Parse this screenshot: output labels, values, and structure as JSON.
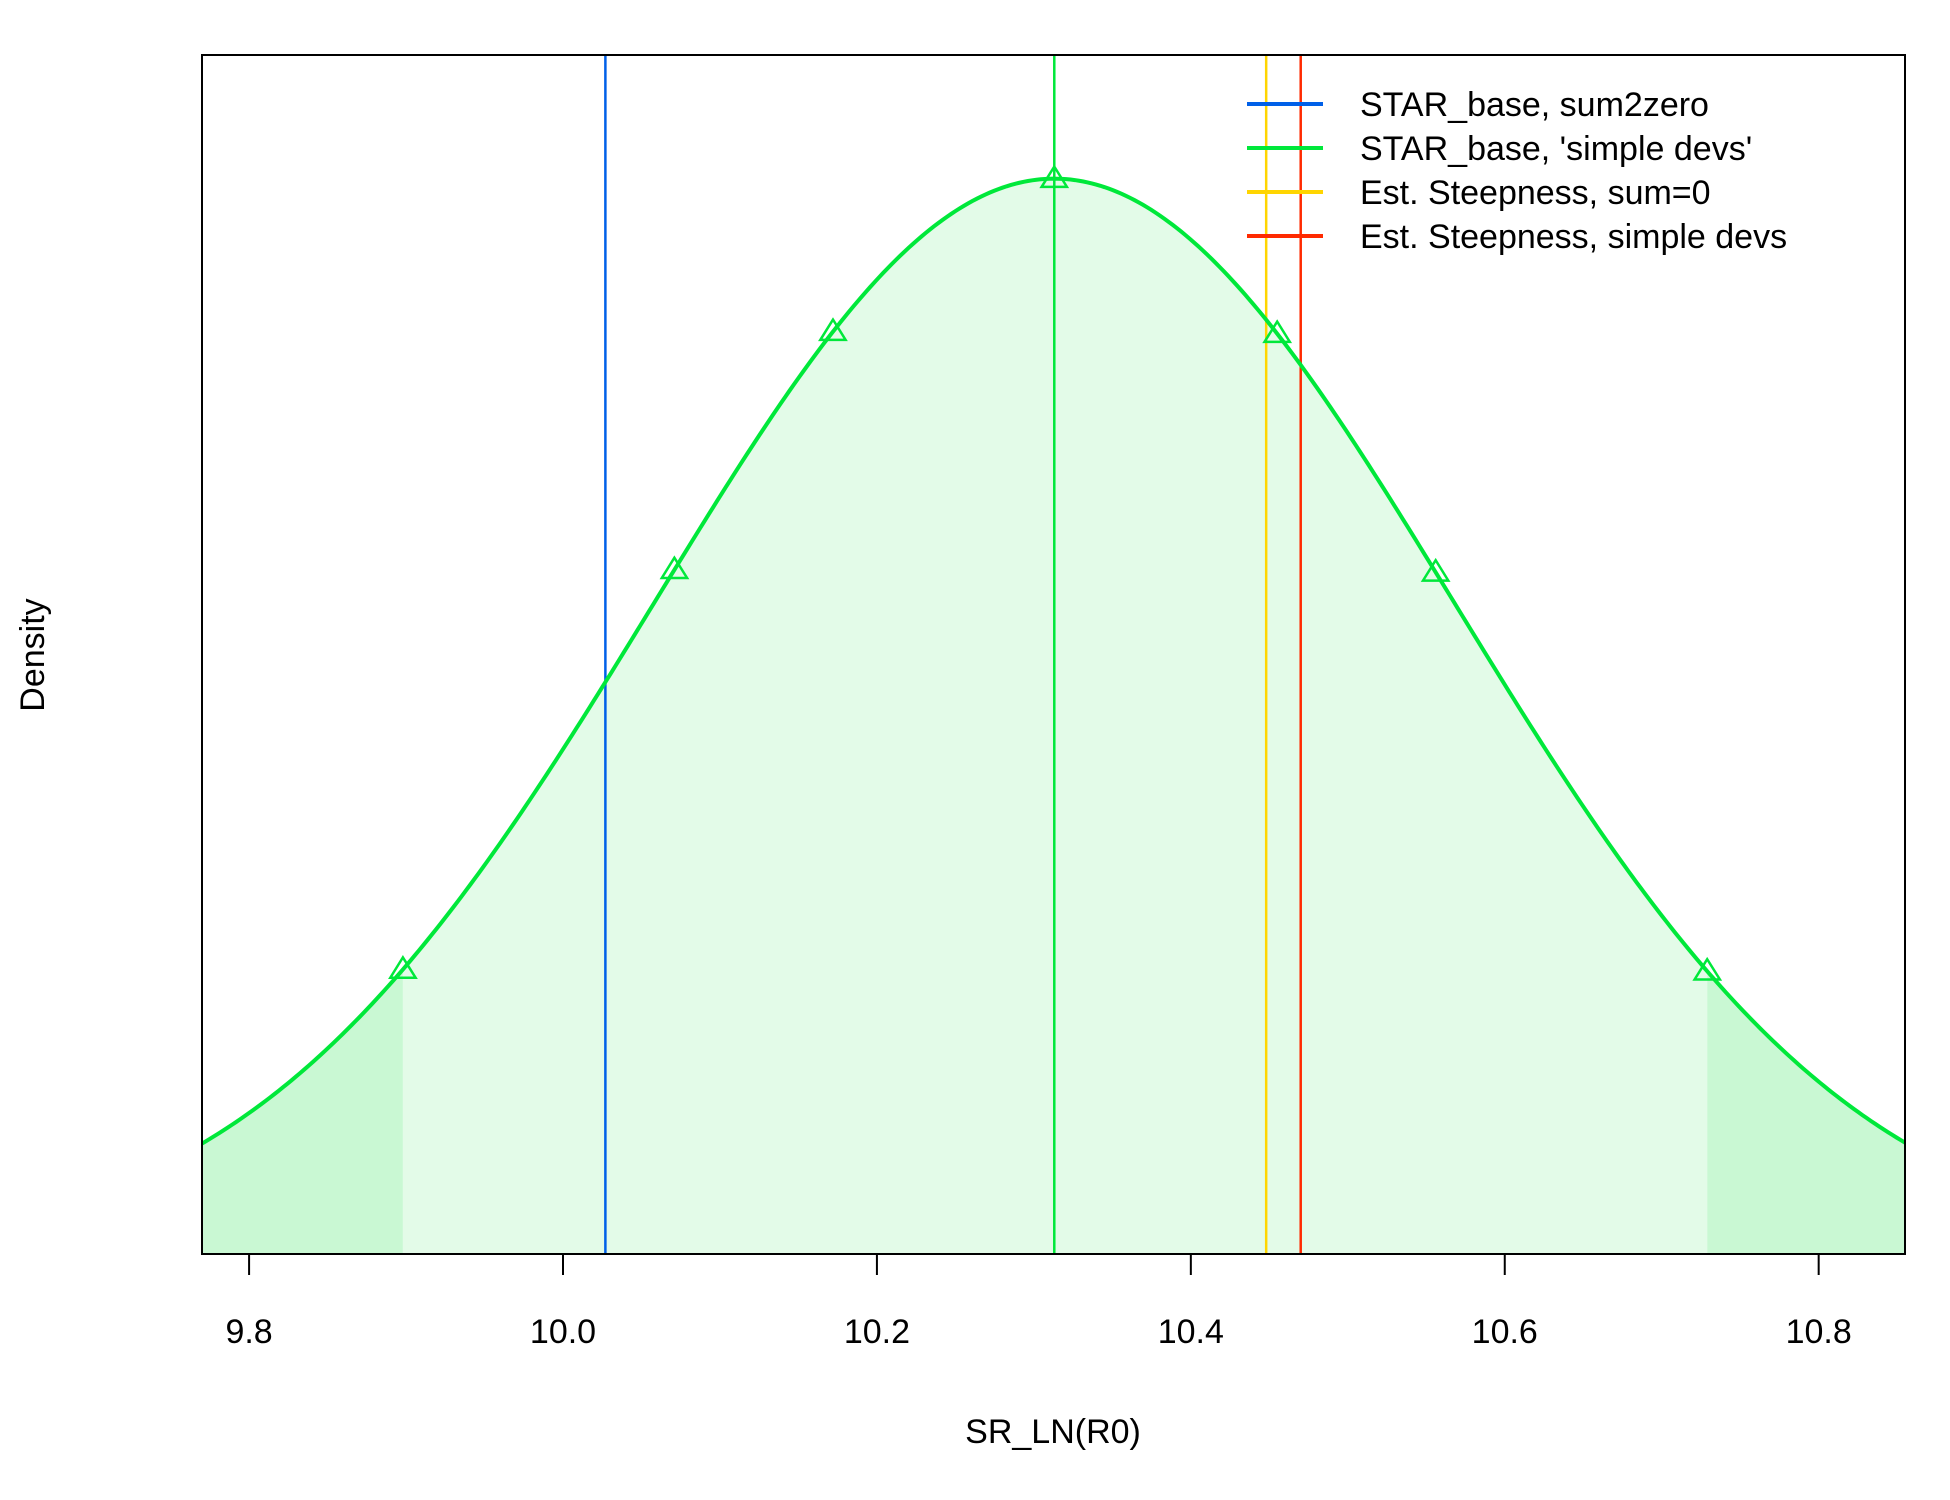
{
  "chart_data": {
    "type": "line",
    "title": "",
    "xlabel": "SR_LN(R0)",
    "ylabel": "Density",
    "xlim": [
      9.77,
      10.855
    ],
    "ylim": [
      0,
      1.115
    ],
    "x_ticks": [
      "9.8",
      "10.0",
      "10.2",
      "10.4",
      "10.6",
      "10.8"
    ],
    "grid": false,
    "legend_position": "top-right",
    "density": {
      "name": "STAR_base, 'simple devs'",
      "distribution": "normal",
      "mean": 10.313,
      "sd": 0.2545,
      "peak_density": 1.0,
      "color": "#00E83A",
      "fill_color": "#E3FBE8",
      "tail_fill_color": "#C9F8D3",
      "interval_lower": 9.898,
      "interval_upper": 10.729,
      "marker_x": [
        9.898,
        10.071,
        10.172,
        10.313,
        10.455,
        10.556,
        10.729
      ]
    },
    "vlines": [
      {
        "name": "STAR_base, sum2zero",
        "x": 10.027,
        "color": "#0060E8"
      },
      {
        "name": "STAR_base, 'simple devs'",
        "x": 10.313,
        "color": "#00E83A"
      },
      {
        "name": "Est. Steepness, sum=0",
        "x": 10.448,
        "color": "#FFD500"
      },
      {
        "name": "Est. Steepness, simple devs",
        "x": 10.47,
        "color": "#FF2A00"
      }
    ],
    "legend": [
      {
        "label": "STAR_base, sum2zero",
        "color": "#0060E8"
      },
      {
        "label": "STAR_base, 'simple devs'",
        "color": "#00E83A"
      },
      {
        "label": "Est. Steepness, sum=0",
        "color": "#FFD500"
      },
      {
        "label": "Est. Steepness, simple devs",
        "color": "#FF2A00"
      }
    ]
  }
}
